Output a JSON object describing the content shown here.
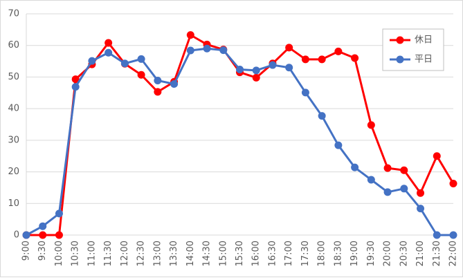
{
  "chart_data": {
    "type": "line",
    "x": [
      "9:00",
      "9:30",
      "10:00",
      "10:30",
      "11:00",
      "11:30",
      "12:00",
      "12:30",
      "13:00",
      "13:30",
      "14:00",
      "14:30",
      "15:00",
      "15:30",
      "16:00",
      "16:30",
      "17:00",
      "17:30",
      "18:00",
      "18:30",
      "19:00",
      "19:30",
      "20:00",
      "20:30",
      "21:00",
      "21:30",
      "22:00"
    ],
    "series": [
      {
        "name": "休日",
        "color": "#ff0000",
        "values": [
          0,
          0,
          0,
          49.3,
          54,
          60.8,
          54.2,
          50.7,
          45.3,
          48.5,
          63.3,
          60.3,
          58.7,
          51.5,
          49.8,
          54.3,
          59.3,
          55.6,
          55.6,
          58.1,
          56,
          34.8,
          21.2,
          20.5,
          13.3,
          25,
          16.3
        ]
      },
      {
        "name": "平日",
        "color": "#4472c4",
        "values": [
          0,
          2.8,
          6.8,
          46.9,
          55.1,
          57.7,
          54.3,
          55.7,
          48.9,
          47.8,
          58.4,
          59,
          58.5,
          52.4,
          52.1,
          53.8,
          53,
          45.1,
          37.7,
          28.4,
          21.4,
          17.5,
          13.6,
          14.7,
          8.4,
          0,
          0
        ]
      }
    ],
    "ylim": [
      0,
      70
    ],
    "yticks": [
      0,
      10,
      20,
      30,
      40,
      50,
      60,
      70
    ],
    "grid": true,
    "legend": "top-right"
  }
}
